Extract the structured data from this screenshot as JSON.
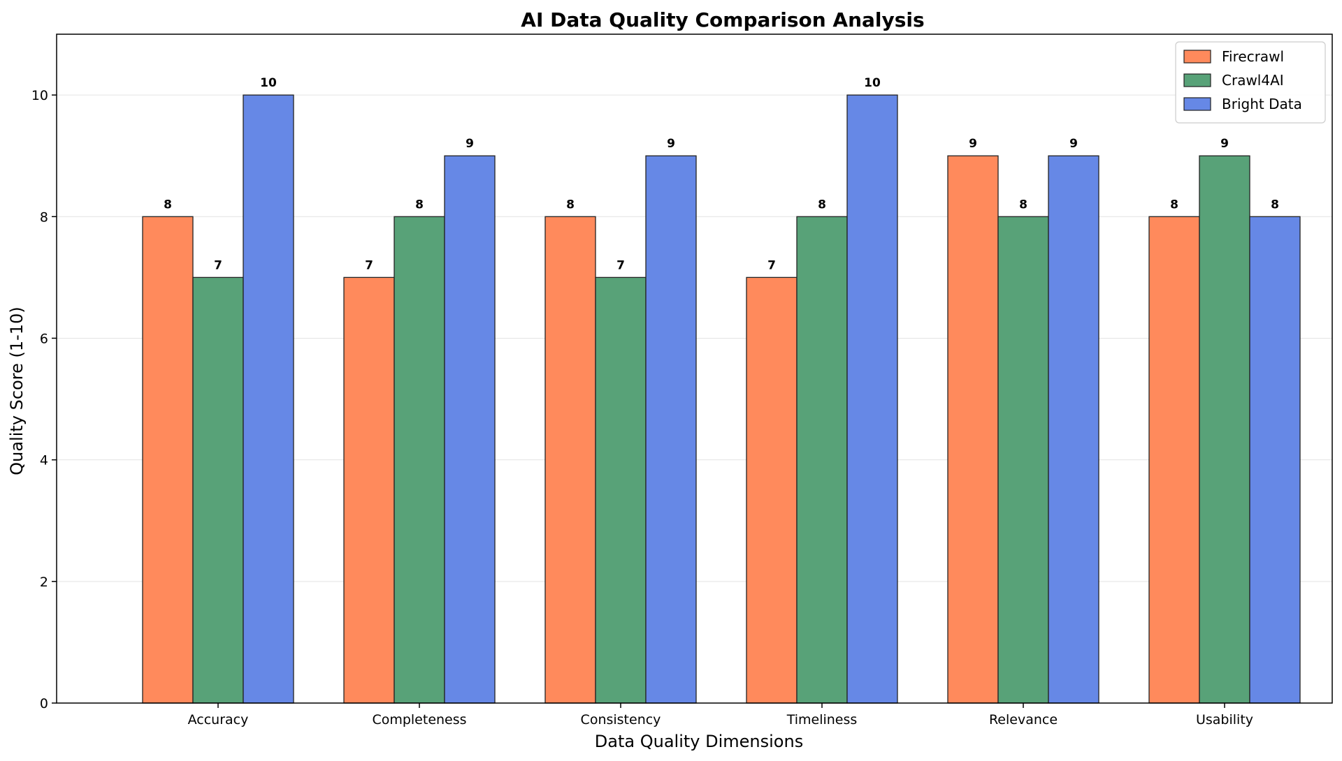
{
  "chart_data": {
    "type": "bar",
    "title": "AI Data Quality Comparison Analysis",
    "xlabel": "Data Quality Dimensions",
    "ylabel": "Quality Score (1-10)",
    "categories": [
      "Accuracy",
      "Completeness",
      "Consistency",
      "Timeliness",
      "Relevance",
      "Usability"
    ],
    "series": [
      {
        "name": "Firecrawl",
        "values": [
          8,
          7,
          8,
          7,
          9,
          8
        ],
        "color": "#ff8a5c"
      },
      {
        "name": "Crawl4AI",
        "values": [
          7,
          8,
          7,
          8,
          8,
          9
        ],
        "color": "#58a278"
      },
      {
        "name": "Bright Data",
        "values": [
          10,
          9,
          9,
          10,
          9,
          8
        ],
        "color": "#6688e6"
      }
    ],
    "ylim": [
      0,
      11
    ],
    "yticks": [
      0,
      2,
      4,
      6,
      8,
      10
    ],
    "grid": "y",
    "legend": "top-right"
  }
}
